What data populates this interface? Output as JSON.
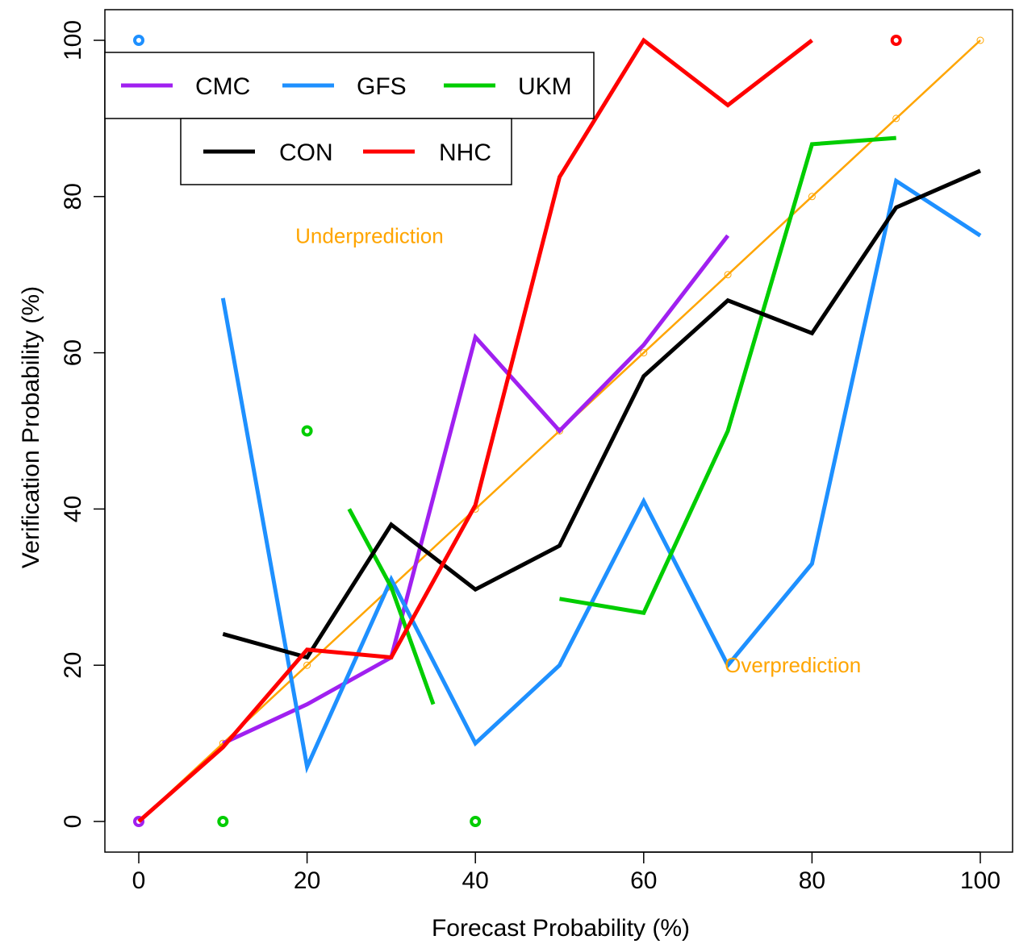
{
  "chart_data": {
    "type": "line",
    "title": "",
    "xlabel": "Forecast Probability (%)",
    "ylabel": "Verification Probability (%)",
    "xlim": [
      -10,
      104
    ],
    "ylim": [
      -4,
      104
    ],
    "xticks": [
      0,
      20,
      40,
      60,
      80,
      100
    ],
    "yticks": [
      0,
      20,
      40,
      60,
      80,
      100
    ],
    "grid": false,
    "reference_line": {
      "color": "#FFA500",
      "points": [
        [
          0,
          0
        ],
        [
          10,
          10
        ],
        [
          20,
          20
        ],
        [
          30,
          30
        ],
        [
          40,
          40
        ],
        [
          50,
          50
        ],
        [
          60,
          60
        ],
        [
          70,
          70
        ],
        [
          80,
          80
        ],
        [
          90,
          90
        ],
        [
          100,
          100
        ]
      ]
    },
    "series": [
      {
        "name": "CMC",
        "color": "#A020F0",
        "lines": [
          [
            [
              10,
              10
            ],
            [
              20,
              15
            ],
            [
              30,
              21
            ],
            [
              40,
              62
            ],
            [
              50,
              50
            ],
            [
              60,
              61
            ],
            [
              70,
              75
            ]
          ]
        ],
        "points": [
          [
            0,
            0
          ]
        ]
      },
      {
        "name": "GFS",
        "color": "#1E90FF",
        "lines": [
          [
            [
              10,
              67
            ],
            [
              20,
              7
            ],
            [
              30,
              31
            ],
            [
              40,
              10
            ],
            [
              50,
              20
            ],
            [
              60,
              41
            ],
            [
              70,
              20
            ],
            [
              80,
              33
            ],
            [
              90,
              82
            ],
            [
              100,
              75
            ]
          ]
        ],
        "points": [
          [
            0,
            100
          ]
        ]
      },
      {
        "name": "UKM",
        "color": "#00CD00",
        "lines": [
          [
            [
              25,
              40
            ],
            [
              30,
              30
            ],
            [
              35,
              15
            ]
          ],
          [
            [
              50,
              28.5
            ],
            [
              60,
              26.7
            ],
            [
              70,
              50
            ],
            [
              80,
              86.7
            ],
            [
              90,
              87.5
            ]
          ]
        ],
        "points": [
          [
            10,
            0
          ],
          [
            20,
            50
          ],
          [
            40,
            0
          ]
        ]
      },
      {
        "name": "CON",
        "color": "#000000",
        "lines": [
          [
            [
              10,
              24
            ],
            [
              20,
              21
            ],
            [
              30,
              38
            ],
            [
              40,
              29.7
            ],
            [
              50,
              35.3
            ],
            [
              60,
              57
            ],
            [
              70,
              66.7
            ],
            [
              80,
              62.5
            ],
            [
              90,
              78.6
            ],
            [
              100,
              83.3
            ]
          ]
        ],
        "points": []
      },
      {
        "name": "NHC",
        "color": "#FF0000",
        "lines": [
          [
            [
              0,
              0
            ],
            [
              10,
              9.5
            ],
            [
              20,
              22
            ],
            [
              30,
              21
            ],
            [
              40,
              40.5
            ],
            [
              50,
              82.5
            ],
            [
              60,
              100
            ],
            [
              70,
              91.7
            ],
            [
              80,
              100
            ]
          ]
        ],
        "points": [
          [
            90,
            100
          ]
        ]
      }
    ],
    "legends": [
      {
        "items": [
          "CMC",
          "GFS",
          "UKM"
        ],
        "position": "top-left"
      },
      {
        "items": [
          "CON",
          "NHC"
        ],
        "position": "top-left-below"
      }
    ],
    "annotations": [
      {
        "text": "Underprediction",
        "x": 19,
        "y": 75,
        "color": "#FFA500"
      },
      {
        "text": "Overprediction",
        "x": 70,
        "y": 20,
        "color": "#FFA500"
      }
    ]
  }
}
